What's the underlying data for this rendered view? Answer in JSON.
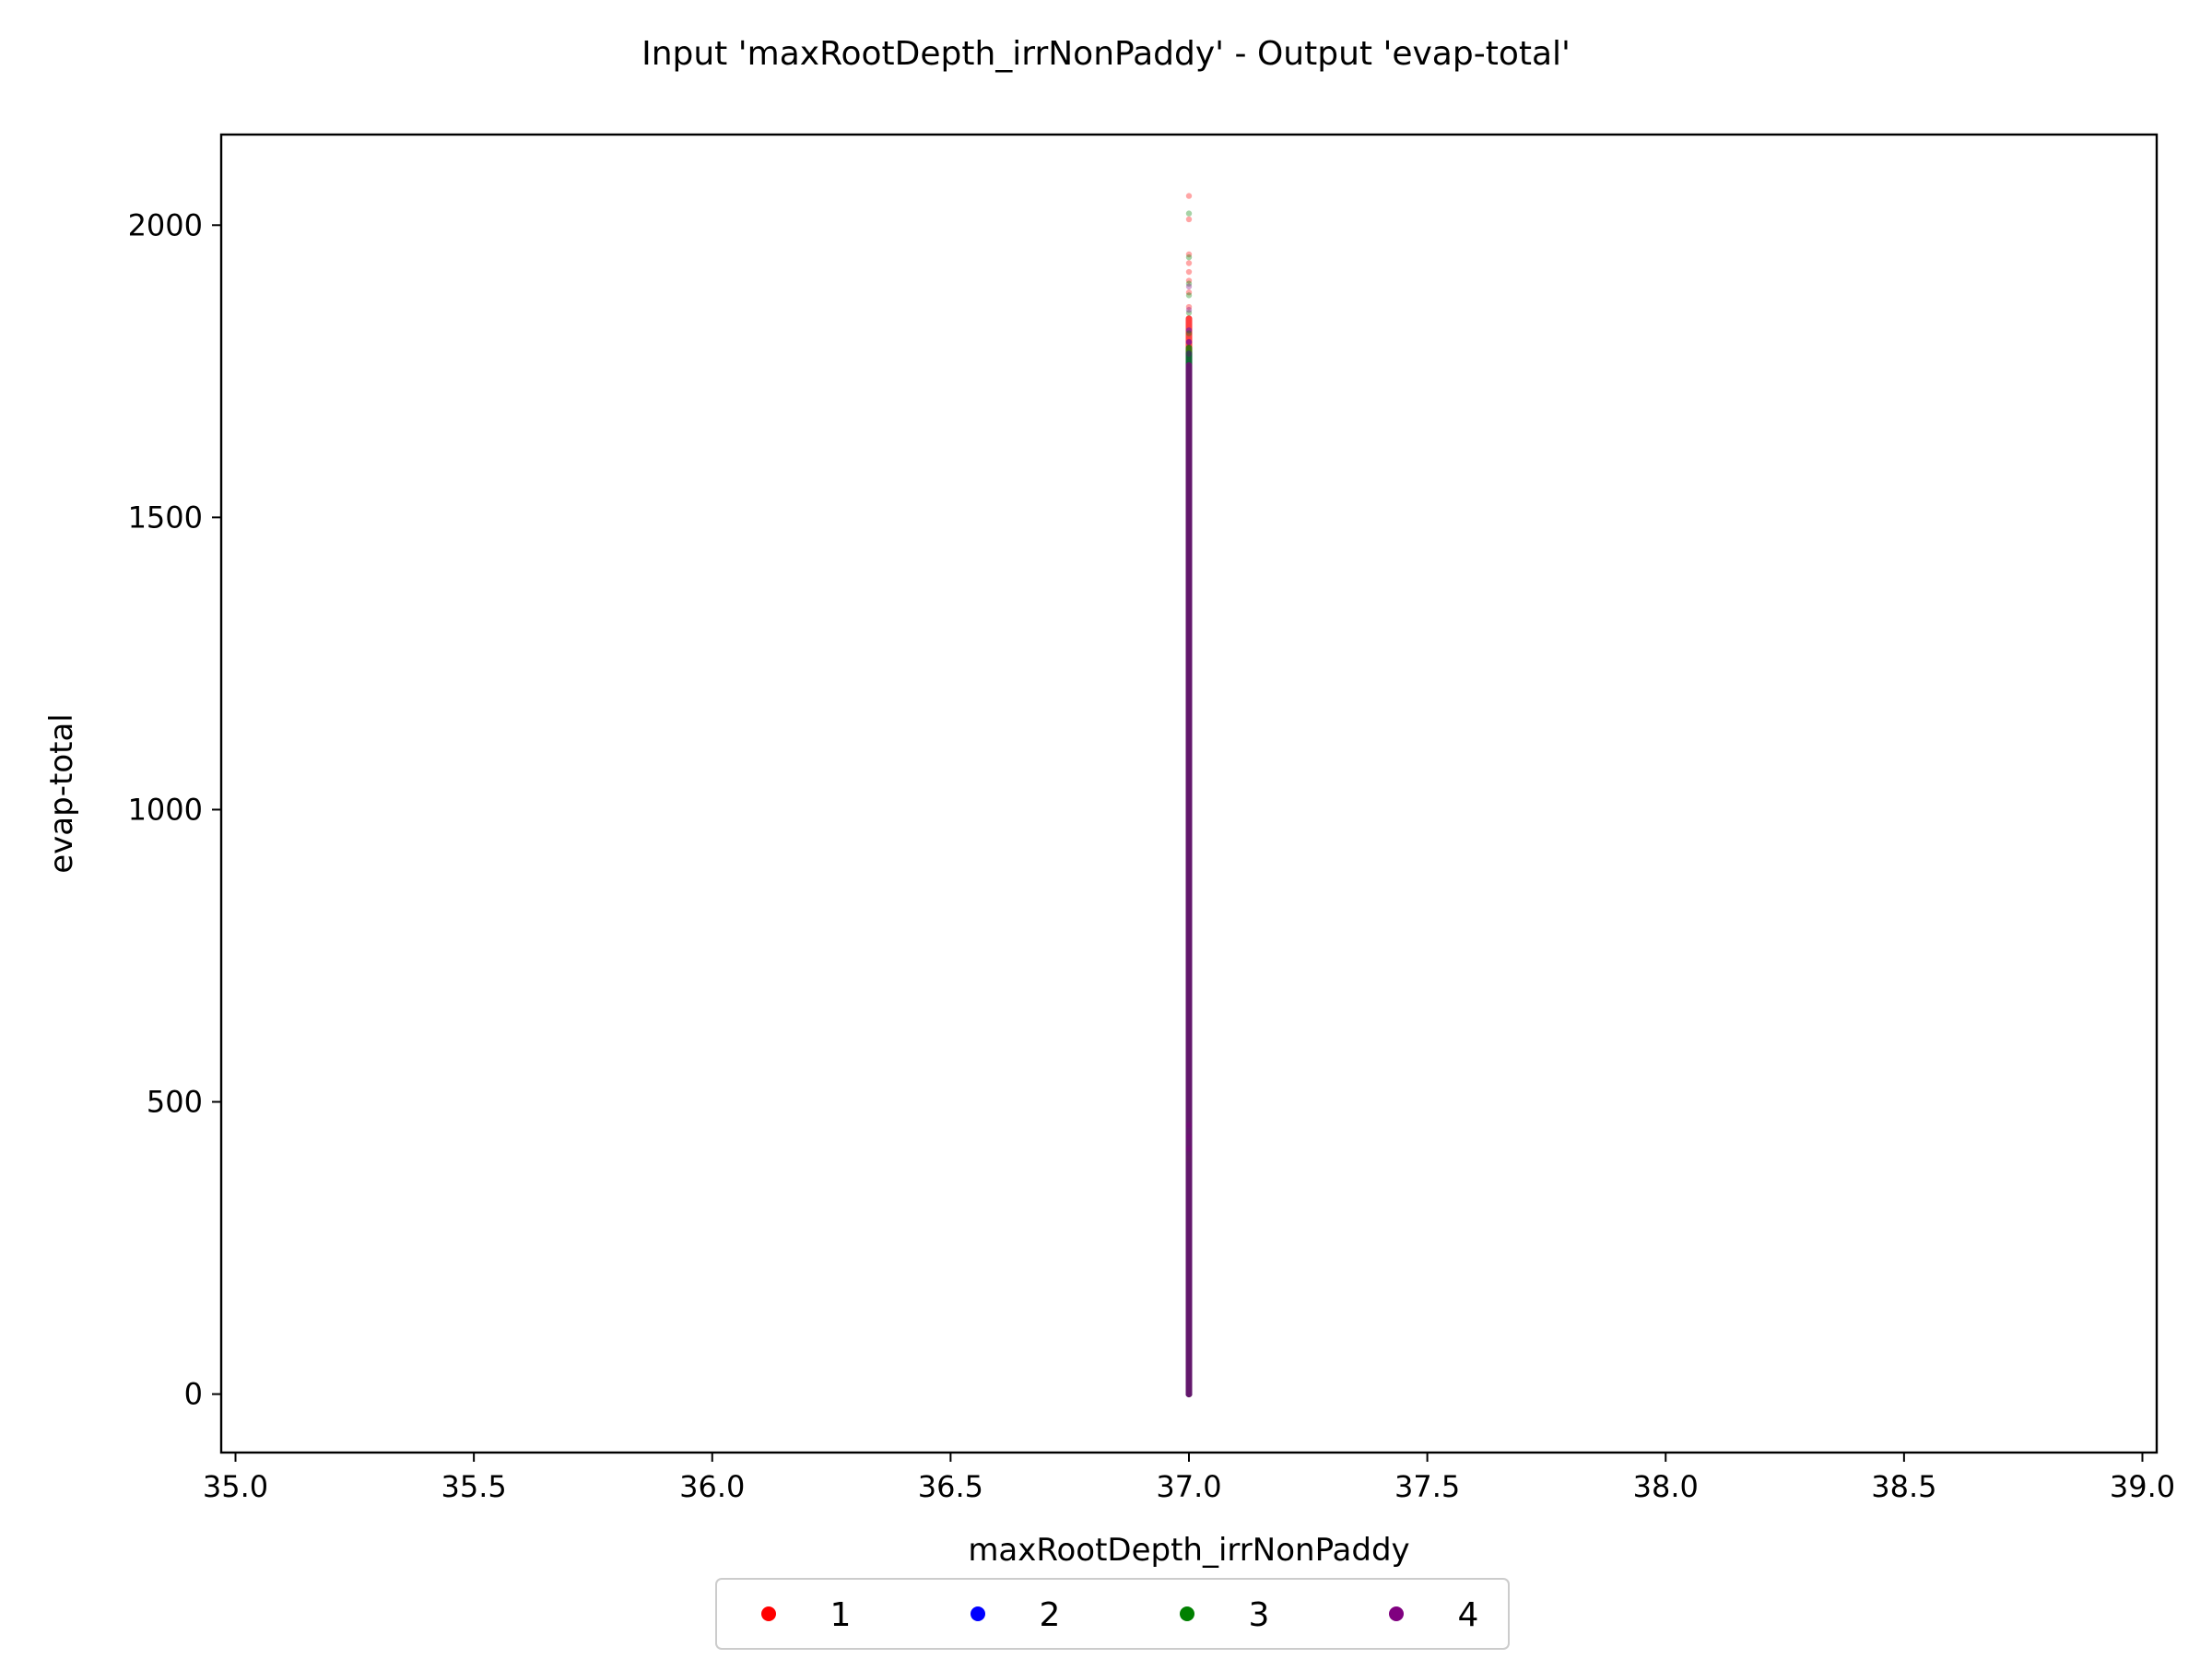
{
  "chart_data": {
    "type": "scatter",
    "title": "Input 'maxRootDepth_irrNonPaddy' - Output 'evap-total'",
    "xlabel": "maxRootDepth_irrNonPaddy",
    "ylabel": "evap-total",
    "xlim": [
      34.97,
      39.03
    ],
    "ylim": [
      -100,
      2155
    ],
    "xticks": [
      35.0,
      35.5,
      36.0,
      36.5,
      37.0,
      37.5,
      38.0,
      38.5,
      39.0
    ],
    "xtick_labels": [
      "35.0",
      "35.5",
      "36.0",
      "36.5",
      "37.0",
      "37.5",
      "38.0",
      "38.5",
      "39.0"
    ],
    "yticks": [
      0,
      500,
      1000,
      1500,
      2000
    ],
    "ytick_labels": [
      "0",
      "500",
      "1000",
      "1500",
      "2000"
    ],
    "grid": false,
    "legend_position": "bottom-center-outside",
    "series": [
      {
        "name": "1",
        "color": "#ff0000",
        "x": 37.0,
        "y_range": [
          0,
          1840
        ],
        "y_outliers": [
          1860,
          1885,
          1905,
          1920,
          1935,
          1950,
          2010,
          2050
        ]
      },
      {
        "name": "2",
        "color": "#0000ff",
        "x": 37.0,
        "y_range": [
          0,
          1780
        ],
        "y_outliers": [
          1800,
          1820
        ]
      },
      {
        "name": "3",
        "color": "#008000",
        "x": 37.0,
        "y_range": [
          0,
          1790
        ],
        "y_outliers": [
          400,
          405,
          1815,
          1850,
          1880,
          1900,
          1945,
          2020
        ]
      },
      {
        "name": "4",
        "color": "#800080",
        "x": 37.0,
        "y_range": [
          0,
          1760
        ],
        "y_outliers": [
          420,
          440,
          460,
          1780,
          1800,
          1855,
          1895
        ]
      }
    ]
  }
}
